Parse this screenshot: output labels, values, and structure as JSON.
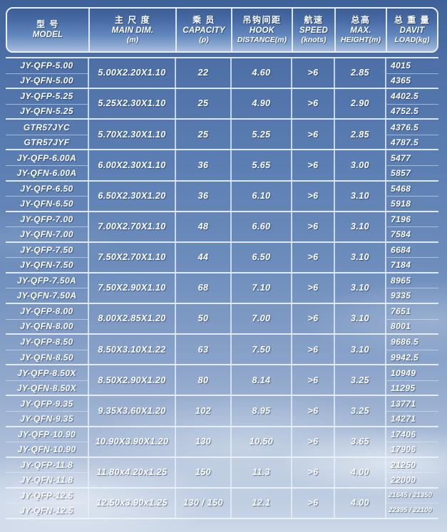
{
  "palette": {
    "header_top": "#3c5e97",
    "header_bottom": "#a8bfdd",
    "sky_top": "#40629b",
    "sky_bottom": "#cdd8e8",
    "grid_line": "#e9eff8",
    "text": "#ffffff"
  },
  "table": {
    "headers": [
      {
        "id": "model",
        "zh": "型 号",
        "en": "MODEL",
        "sub": ""
      },
      {
        "id": "main-dim",
        "zh": "主 尺 度",
        "en": "MAIN DIM.",
        "sub": "(m)"
      },
      {
        "id": "capacity",
        "zh": "乘 员",
        "en": "CAPACITY",
        "sub": "(p)"
      },
      {
        "id": "hook-distance",
        "zh": "吊钩间距",
        "en": "HOOK",
        "sub": "DISTANCE(m)"
      },
      {
        "id": "speed",
        "zh": "航速",
        "en": "SPEED",
        "sub": "(knots)"
      },
      {
        "id": "max-height",
        "zh": "总高",
        "en": "MAX.",
        "sub": "HEIGHT(m)"
      },
      {
        "id": "davit-load",
        "zh": "总 重 量",
        "en": "DAVIT",
        "sub": "LOAD(kg)"
      }
    ],
    "groups": [
      {
        "models": [
          "JY-QFP-5.00",
          "JY-QFN-5.00"
        ],
        "dim": "5.00X2.20X1.10",
        "capacity": "22",
        "hook": "4.60",
        "speed": ">6",
        "height": "2.85",
        "loads": [
          "4015",
          "4365"
        ]
      },
      {
        "models": [
          "JY-QFP-5.25",
          "JY-QFN-5.25"
        ],
        "dim": "5.25X2.30X1.10",
        "capacity": "25",
        "hook": "4.90",
        "speed": ">6",
        "height": "2.90",
        "loads": [
          "4402.5",
          "4752.5"
        ]
      },
      {
        "models": [
          "GTR57JYC",
          "GTR57JYF"
        ],
        "dim": "5.70X2.30X1.10",
        "capacity": "25",
        "hook": "5.25",
        "speed": ">6",
        "height": "2.85",
        "loads": [
          "4376.5",
          "4787.5"
        ]
      },
      {
        "models": [
          "JY-QFP-6.00A",
          "JY-QFN-6.00A"
        ],
        "dim": "6.00X2.30X1.10",
        "capacity": "36",
        "hook": "5.65",
        "speed": ">6",
        "height": "3.00",
        "loads": [
          "5477",
          "5857"
        ]
      },
      {
        "models": [
          "JY-QFP-6.50",
          "JY-QFN-6.50"
        ],
        "dim": "6.50X2.30X1.20",
        "capacity": "36",
        "hook": "6.10",
        "speed": ">6",
        "height": "3.10",
        "loads": [
          "5468",
          "5918"
        ]
      },
      {
        "models": [
          "JY-QFP-7.00",
          "JY-QFN-7.00"
        ],
        "dim": "7.00X2.70X1.10",
        "capacity": "48",
        "hook": "6.60",
        "speed": ">6",
        "height": "3.10",
        "loads": [
          "7196",
          "7584"
        ]
      },
      {
        "models": [
          "JY-QFP-7.50",
          "JY-QFN-7.50"
        ],
        "dim": "7.50X2.70X1.10",
        "capacity": "44",
        "hook": "6.50",
        "speed": ">6",
        "height": "3.10",
        "loads": [
          "6684",
          "7184"
        ]
      },
      {
        "models": [
          "JY-QFP-7.50A",
          "JY-QFN-7.50A"
        ],
        "dim": "7.50X2.90X1.10",
        "capacity": "68",
        "hook": "7.10",
        "speed": ">6",
        "height": "3.10",
        "loads": [
          "8965",
          "9335"
        ]
      },
      {
        "models": [
          "JY-QFP-8.00",
          "JY-QFN-8.00"
        ],
        "dim": "8.00X2.85X1.20",
        "capacity": "50",
        "hook": "7.00",
        "speed": ">6",
        "height": "3.10",
        "loads": [
          "7651",
          "8001"
        ]
      },
      {
        "models": [
          "JY-QFP-8.50",
          "JY-QFN-8.50"
        ],
        "dim": "8.50X3.10X1.22",
        "capacity": "63",
        "hook": "7.50",
        "speed": ">6",
        "height": "3.10",
        "loads": [
          "9686.5",
          "9942.5"
        ]
      },
      {
        "models": [
          "JY-QFP-8.50X",
          "JY-QFN-8.50X"
        ],
        "dim": "8.50X2.90X1.20",
        "capacity": "80",
        "hook": "8.14",
        "speed": ">6",
        "height": "3.25",
        "loads": [
          "10949",
          "11295"
        ]
      },
      {
        "models": [
          "JY-QFP-9.35",
          "JY-QFN-9.35"
        ],
        "dim": "9.35X3.60X1.20",
        "capacity": "102",
        "hook": "8.95",
        "speed": ">6",
        "height": "3.25",
        "loads": [
          "13771",
          "14271"
        ]
      },
      {
        "models": [
          "JY-QFP-10.90",
          "JY-QFN-10.90"
        ],
        "dim": "10.90X3.90X1.20",
        "capacity": "130",
        "hook": "10.50",
        "speed": ">6",
        "height": "3.65",
        "loads": [
          "17406",
          "17906"
        ]
      },
      {
        "models": [
          "JY-QFP-11.8",
          "JY-QFN-11.8"
        ],
        "dim": "11.80x4.20x1.25",
        "capacity": "150",
        "hook": "11.3",
        "speed": ">6",
        "height": "4.00",
        "loads": [
          "21250",
          "22000"
        ]
      },
      {
        "models": [
          "JY-QFP-12.5",
          "JY-QFN-12.5"
        ],
        "dim": "12.50x3.90x1.25",
        "capacity": "130 / 150",
        "hook": "12.1",
        "speed": ">6",
        "height": "4.00",
        "loads": [
          "21645 / 21350",
          "22395 / 22100"
        ]
      }
    ]
  }
}
